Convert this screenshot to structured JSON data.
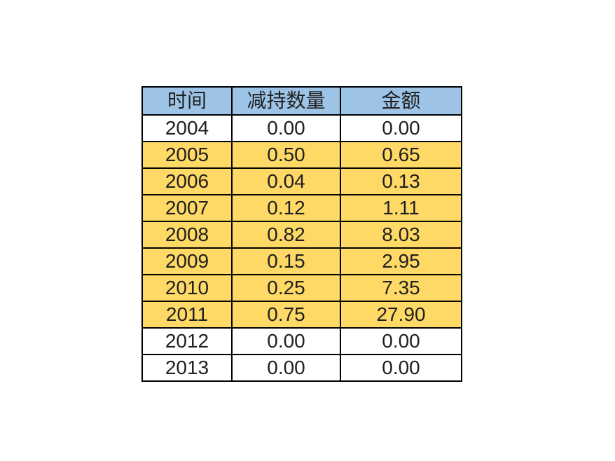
{
  "table": {
    "header": {
      "time": "时间",
      "quantity": "减持数量",
      "amount": "金额"
    },
    "rows": [
      {
        "year": "2004",
        "quantity": "0.00",
        "amount": "0.00",
        "highlight": false
      },
      {
        "year": "2005",
        "quantity": "0.50",
        "amount": "0.65",
        "highlight": true
      },
      {
        "year": "2006",
        "quantity": "0.04",
        "amount": "0.13",
        "highlight": true
      },
      {
        "year": "2007",
        "quantity": "0.12",
        "amount": "1.11",
        "highlight": true
      },
      {
        "year": "2008",
        "quantity": "0.82",
        "amount": "8.03",
        "highlight": true
      },
      {
        "year": "2009",
        "quantity": "0.15",
        "amount": "2.95",
        "highlight": true
      },
      {
        "year": "2010",
        "quantity": "0.25",
        "amount": "7.35",
        "highlight": true
      },
      {
        "year": "2011",
        "quantity": "0.75",
        "amount": "27.90",
        "highlight": true
      },
      {
        "year": "2012",
        "quantity": "0.00",
        "amount": "0.00",
        "highlight": false
      },
      {
        "year": "2013",
        "quantity": "0.00",
        "amount": "0.00",
        "highlight": false
      }
    ],
    "colors": {
      "header_bg": "#9DC3E6",
      "highlight_bg": "#FFD966",
      "normal_bg": "#FFFFFF",
      "border": "#000000",
      "text": "#1F1F1F"
    }
  },
  "chart_data": {
    "type": "table",
    "columns": [
      "时间",
      "减持数量",
      "金额"
    ],
    "rows": [
      [
        "2004",
        0.0,
        0.0
      ],
      [
        "2005",
        0.5,
        0.65
      ],
      [
        "2006",
        0.04,
        0.13
      ],
      [
        "2007",
        0.12,
        1.11
      ],
      [
        "2008",
        0.82,
        8.03
      ],
      [
        "2009",
        0.15,
        2.95
      ],
      [
        "2010",
        0.25,
        7.35
      ],
      [
        "2011",
        0.75,
        27.9
      ],
      [
        "2012",
        0.0,
        0.0
      ],
      [
        "2013",
        0.0,
        0.0
      ]
    ]
  }
}
